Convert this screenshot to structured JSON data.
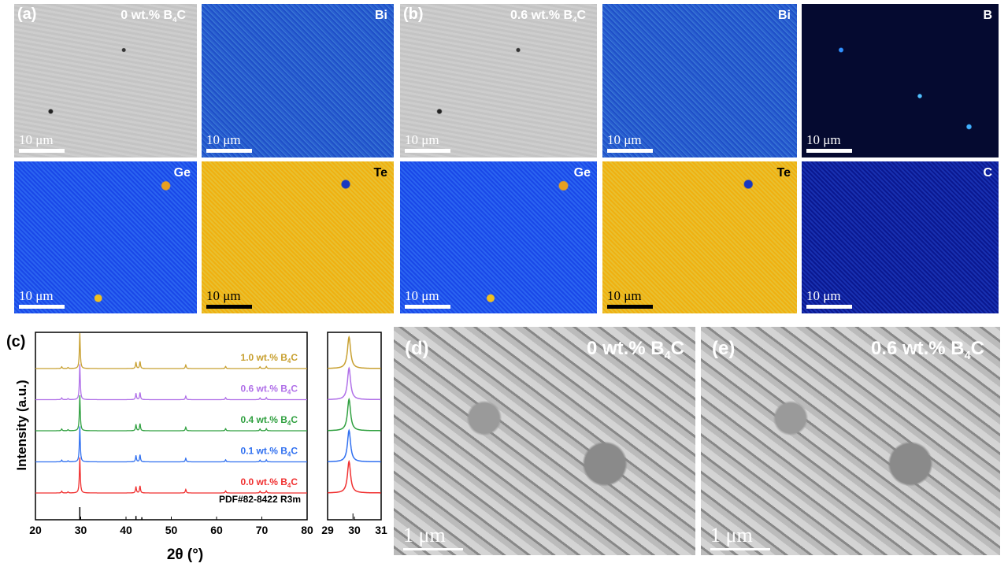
{
  "panels": {
    "a": {
      "label": "(a)",
      "title": "0 wt.% B4C",
      "scale": "10 μm",
      "maps": [
        "Bi",
        "Ge",
        "Te"
      ]
    },
    "b": {
      "label": "(b)",
      "title": "0.6 wt.% B4C",
      "scale": "10 μm",
      "maps": [
        "Bi",
        "B",
        "Ge",
        "Te",
        "C"
      ]
    },
    "d": {
      "label": "(d)",
      "title": "0 wt.% B4C",
      "scale": "1 μm"
    },
    "e": {
      "label": "(e)",
      "title": "0.6 wt.% B4C",
      "scale": "1 μm"
    }
  },
  "chart_data": {
    "type": "line",
    "label": "(c)",
    "xlabel": "2θ (°)",
    "ylabel": "Intensity (a.u.)",
    "xlim": [
      20,
      80
    ],
    "xticks": [
      20,
      30,
      40,
      50,
      60,
      70,
      80
    ],
    "inset": {
      "xlim": [
        29,
        31
      ],
      "xticks": [
        29,
        30,
        31
      ]
    },
    "reference": {
      "name": "PDF#82-8422 R3m",
      "peaks": [
        [
          29.8,
          1.0
        ],
        [
          42.2,
          0.3
        ],
        [
          43.5,
          0.2
        ]
      ]
    },
    "peaks": [
      [
        25.8,
        0.05
      ],
      [
        27.2,
        0.03
      ],
      [
        29.8,
        1.0
      ],
      [
        42.2,
        0.18
      ],
      [
        43.1,
        0.2
      ],
      [
        53.2,
        0.1
      ],
      [
        62.0,
        0.06
      ],
      [
        69.6,
        0.05
      ],
      [
        71.0,
        0.06
      ]
    ],
    "series": [
      {
        "name": "1.0 wt.% B4C",
        "color": "#c8a030"
      },
      {
        "name": "0.6 wt.% B4C",
        "color": "#b070e8"
      },
      {
        "name": "0.4 wt.% B4C",
        "color": "#30a040"
      },
      {
        "name": "0.1 wt.% B4C",
        "color": "#3070f0"
      },
      {
        "name": "0.0 wt.% B4C",
        "color": "#f03030"
      }
    ]
  }
}
